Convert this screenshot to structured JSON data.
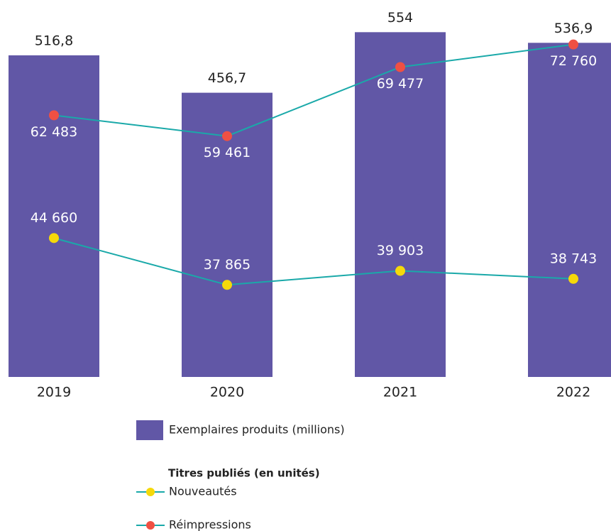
{
  "chart_data": {
    "type": "bar",
    "categories": [
      "2019",
      "2020",
      "2021",
      "2022"
    ],
    "ylim": [
      0,
      600
    ],
    "y2lim": [
      24500,
      78700
    ],
    "legend_title": "Titres publiés (en unités)",
    "series": [
      {
        "name": "Exemplaires produits (millions)",
        "type": "bar",
        "color": "#6157a6",
        "values": [
          516.8,
          456.7,
          554,
          536.9
        ],
        "value_labels": [
          "516,8",
          "456,7",
          "554",
          "536,9"
        ]
      },
      {
        "name": "Nouveautés",
        "type": "line",
        "axis": "y2",
        "color": "#f5d90a",
        "line_color": "#1aa9a9",
        "values": [
          44660,
          37865,
          39903,
          38743
        ],
        "value_labels": [
          "44 660",
          "37 865",
          "39 903",
          "38 743"
        ]
      },
      {
        "name": "Réimpressions",
        "type": "line",
        "axis": "y2",
        "color": "#ef5043",
        "line_color": "#1aa9a9",
        "values": [
          62483,
          59461,
          69477,
          72760
        ],
        "value_labels": [
          "62 483",
          "59 461",
          "69 477",
          "72 760"
        ]
      }
    ]
  }
}
